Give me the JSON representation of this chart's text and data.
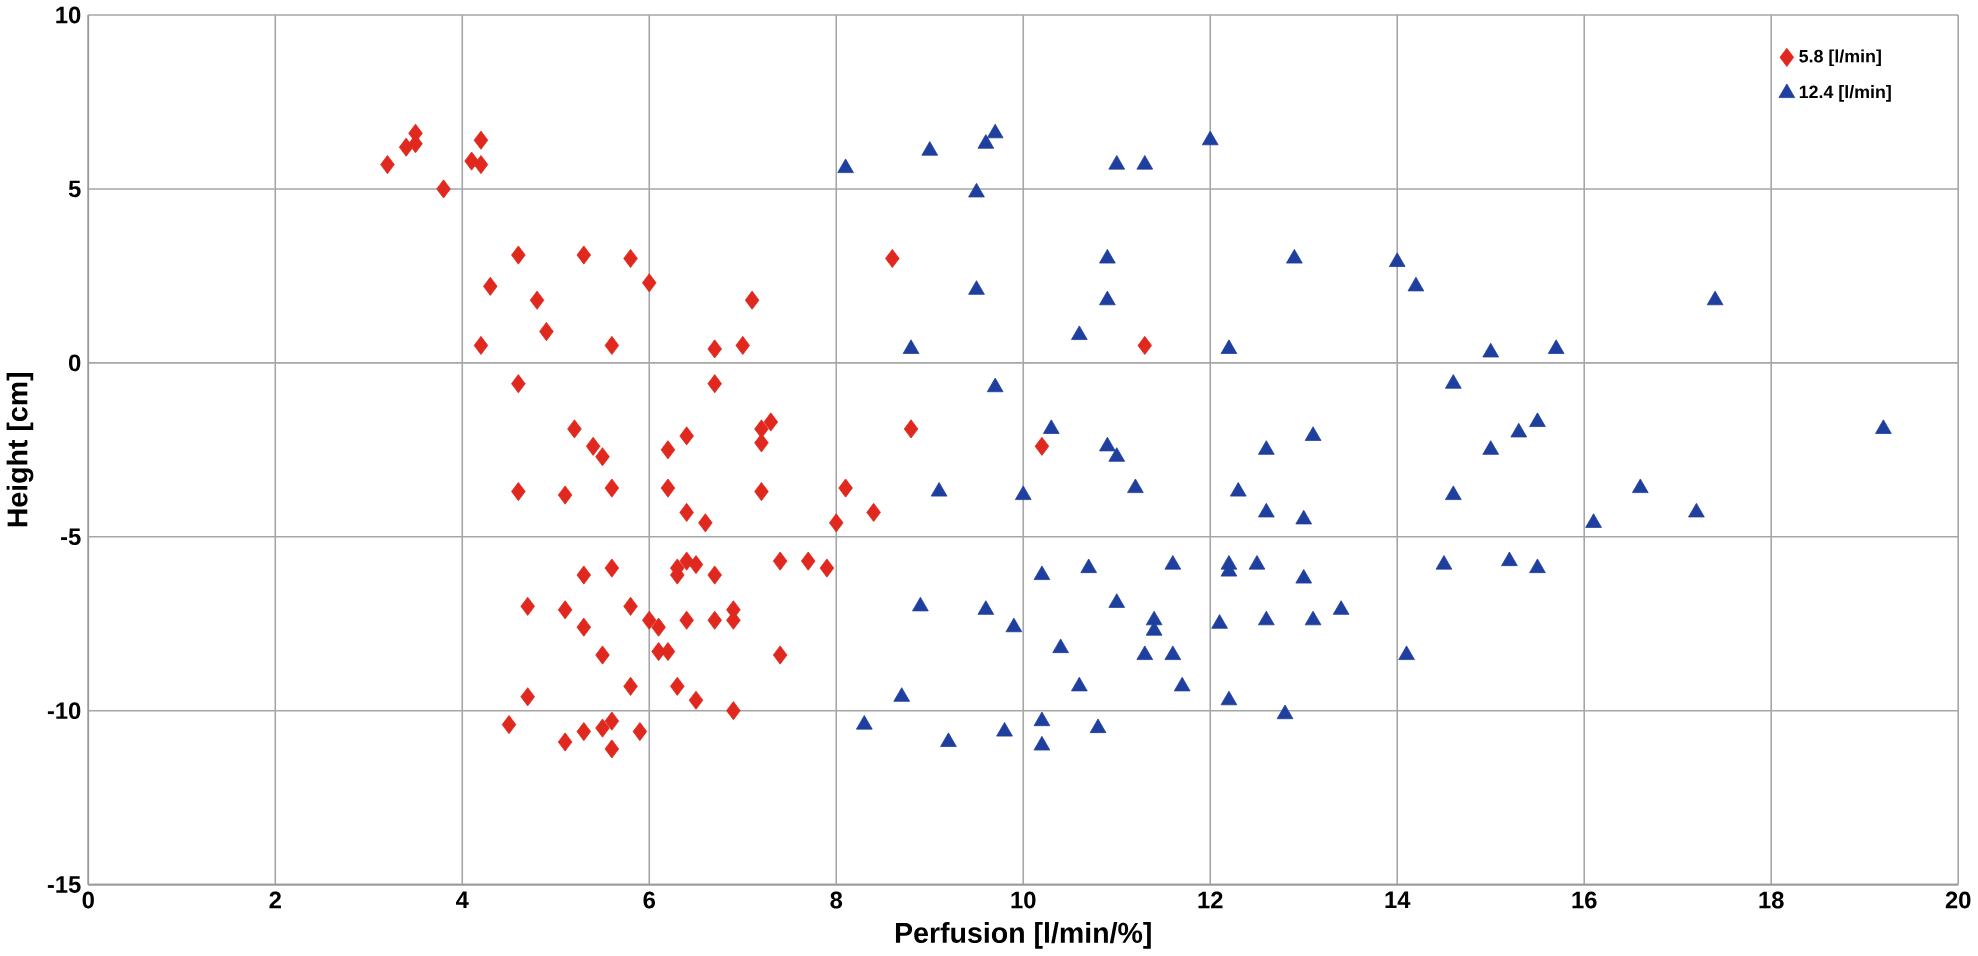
{
  "chart_data": {
    "type": "scatter",
    "xlabel": "Perfusion [l/min/%]",
    "ylabel": "Height [cm]",
    "xlim": [
      0,
      20
    ],
    "ylim": [
      -15,
      10
    ],
    "xticks": [
      0,
      2,
      4,
      6,
      8,
      10,
      12,
      14,
      16,
      18,
      20
    ],
    "yticks": [
      -15,
      -10,
      -5,
      0,
      5,
      10
    ],
    "grid": true,
    "legend": "top right",
    "series": [
      {
        "name": "5.8 [l/min]",
        "color": "#e0281e",
        "marker": "diamond",
        "x": [
          3.2,
          3.4,
          3.5,
          3.5,
          3.8,
          4.1,
          4.2,
          4.2,
          4.2,
          4.3,
          4.6,
          4.6,
          4.6,
          4.7,
          4.7,
          4.5,
          4.8,
          4.9,
          5.1,
          5.2,
          5.1,
          5.1,
          5.3,
          5.3,
          5.3,
          5.3,
          5.4,
          5.5,
          5.5,
          5.5,
          5.6,
          5.6,
          5.6,
          5.6,
          5.6,
          5.8,
          5.8,
          5.8,
          5.9,
          6.0,
          6.0,
          6.1,
          6.1,
          6.2,
          6.2,
          6.2,
          6.3,
          6.3,
          6.3,
          6.4,
          6.4,
          6.4,
          6.4,
          6.5,
          6.5,
          6.6,
          6.7,
          6.7,
          6.7,
          6.7,
          6.9,
          6.9,
          6.9,
          7.0,
          7.1,
          7.2,
          7.2,
          7.2,
          7.3,
          7.4,
          7.4,
          7.7,
          7.9,
          8.0,
          8.1,
          8.4,
          8.6,
          8.8,
          10.2,
          11.3
        ],
        "values": [
          5.7,
          6.2,
          6.6,
          6.3,
          5.0,
          5.8,
          5.7,
          6.4,
          0.5,
          2.2,
          3.1,
          -0.6,
          -3.7,
          -7.0,
          -9.6,
          -10.4,
          1.8,
          0.9,
          -3.8,
          -1.9,
          -7.1,
          -10.9,
          3.1,
          -6.1,
          -7.6,
          -10.6,
          -2.4,
          -2.7,
          -8.4,
          -10.5,
          0.5,
          -3.6,
          -5.9,
          -10.3,
          -11.1,
          3.0,
          -7.0,
          -9.3,
          -10.6,
          2.3,
          -7.4,
          -7.6,
          -8.3,
          -3.6,
          -2.5,
          -8.3,
          -5.9,
          -6.1,
          -9.3,
          -2.1,
          -4.3,
          -5.7,
          -7.4,
          -5.8,
          -9.7,
          -4.6,
          -6.1,
          -7.4,
          0.4,
          -0.6,
          -7.1,
          -7.4,
          -10.0,
          0.5,
          1.8,
          -2.3,
          -3.7,
          -1.9,
          -1.7,
          -5.7,
          -8.4,
          -5.7,
          -5.9,
          -4.6,
          -3.6,
          -4.3,
          3.0,
          -1.9,
          -2.4,
          0.5
        ]
      },
      {
        "name": "12.4 [l/min]",
        "color": "#1f3f9f",
        "marker": "triangle",
        "x": [
          8.1,
          9.0,
          9.5,
          9.6,
          9.7,
          9.5,
          9.1,
          8.8,
          9.7,
          10.3,
          10.0,
          10.6,
          10.9,
          10.9,
          11.0,
          11.3,
          12.0,
          11.0,
          10.9,
          11.2,
          12.2,
          12.3,
          12.6,
          12.6,
          13.0,
          13.1,
          12.9,
          14.0,
          14.2,
          14.6,
          15.0,
          15.7,
          15.0,
          15.3,
          15.5,
          14.6,
          16.1,
          16.6,
          17.2,
          17.4,
          19.2,
          14.5,
          15.2,
          15.5,
          14.1,
          8.3,
          8.7,
          8.9,
          9.2,
          9.6,
          9.8,
          9.9,
          10.2,
          10.2,
          10.2,
          10.4,
          10.6,
          10.7,
          10.8,
          11.0,
          11.3,
          11.4,
          11.4,
          11.6,
          11.7,
          11.6,
          12.1,
          12.2,
          12.2,
          12.2,
          12.5,
          12.6,
          12.8,
          13.0,
          13.1,
          13.4
        ],
        "values": [
          5.6,
          6.1,
          4.9,
          6.3,
          6.6,
          2.1,
          -3.7,
          0.4,
          -0.7,
          -1.9,
          -3.8,
          0.8,
          1.8,
          3.0,
          5.7,
          5.7,
          6.4,
          -2.7,
          -2.4,
          -3.6,
          0.4,
          -3.7,
          -4.3,
          -2.5,
          -4.5,
          -2.1,
          3.0,
          2.9,
          2.2,
          -0.6,
          0.3,
          0.4,
          -2.5,
          -2.0,
          -1.7,
          -3.8,
          -4.6,
          -3.6,
          -4.3,
          1.8,
          -1.9,
          -5.8,
          -5.7,
          -5.9,
          -8.4,
          -10.4,
          -9.6,
          -7.0,
          -10.9,
          -7.1,
          -10.6,
          -7.6,
          -6.1,
          -10.3,
          -11.0,
          -8.2,
          -9.3,
          -5.9,
          -10.5,
          -6.9,
          -8.4,
          -7.4,
          -7.7,
          -8.4,
          -9.3,
          -5.8,
          -7.5,
          -5.8,
          -6.0,
          -9.7,
          -5.8,
          -7.4,
          -10.1,
          -6.2,
          -7.4,
          -7.1
        ]
      }
    ]
  }
}
